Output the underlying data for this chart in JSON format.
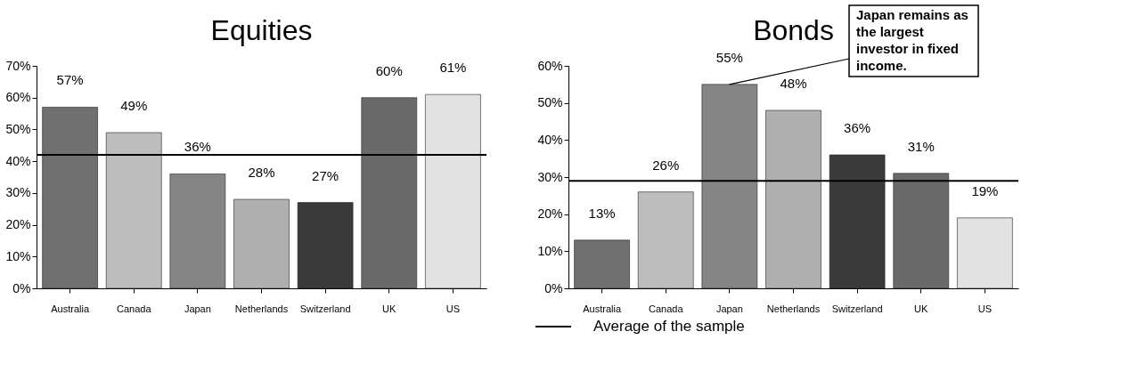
{
  "chart_data": [
    {
      "type": "bar",
      "title": "Equities",
      "categories": [
        "Australia",
        "Canada",
        "Japan",
        "Netherlands",
        "Switzerland",
        "UK",
        "US"
      ],
      "values": [
        57,
        49,
        36,
        28,
        27,
        60,
        61
      ],
      "colors": [
        "#707070",
        "#bdbdbd",
        "#858585",
        "#b0b0b0",
        "#3a3a3a",
        "#6a6a6a",
        "#e2e2e2"
      ],
      "ylim": [
        0,
        70
      ],
      "yticks": [
        {
          "value": 0,
          "label": "0%"
        },
        {
          "value": 10,
          "label": "10%"
        },
        {
          "value": 20,
          "label": "20%"
        },
        {
          "value": 30,
          "label": "30%"
        },
        {
          "value": 40,
          "label": "40%"
        },
        {
          "value": 50,
          "label": "50%"
        },
        {
          "value": 60,
          "label": "60%"
        },
        {
          "value": 70,
          "label": "70%"
        }
      ],
      "value_labels": [
        "57%",
        "49%",
        "36%",
        "28%",
        "27%",
        "60%",
        "61%"
      ],
      "ref_lines": [
        {
          "axis": "y",
          "value": 42,
          "label": "Average of the sample",
          "color": "#000000"
        }
      ],
      "grid": false
    },
    {
      "type": "bar",
      "title": "Bonds",
      "categories": [
        "Australia",
        "Canada",
        "Japan",
        "Netherlands",
        "Switzerland",
        "UK",
        "US"
      ],
      "values": [
        13,
        26,
        55,
        48,
        36,
        31,
        19
      ],
      "colors": [
        "#707070",
        "#bdbdbd",
        "#858585",
        "#b0b0b0",
        "#3a3a3a",
        "#6a6a6a",
        "#e2e2e2"
      ],
      "ylim": [
        0,
        60
      ],
      "yticks": [
        {
          "value": 0,
          "label": "0%"
        },
        {
          "value": 10,
          "label": "10%"
        },
        {
          "value": 20,
          "label": "20%"
        },
        {
          "value": 30,
          "label": "30%"
        },
        {
          "value": 40,
          "label": "40%"
        },
        {
          "value": 50,
          "label": "50%"
        },
        {
          "value": 60,
          "label": "60%"
        }
      ],
      "value_labels": [
        "13%",
        "26%",
        "55%",
        "48%",
        "36%",
        "31%",
        "19%"
      ],
      "ref_lines": [
        {
          "axis": "y",
          "value": 29,
          "color": "#000000"
        }
      ],
      "annotations": [
        {
          "text": "Japan remains as the largest investor in fixed income.",
          "x": "Japan",
          "y": 55
        }
      ],
      "grid": false
    }
  ]
}
